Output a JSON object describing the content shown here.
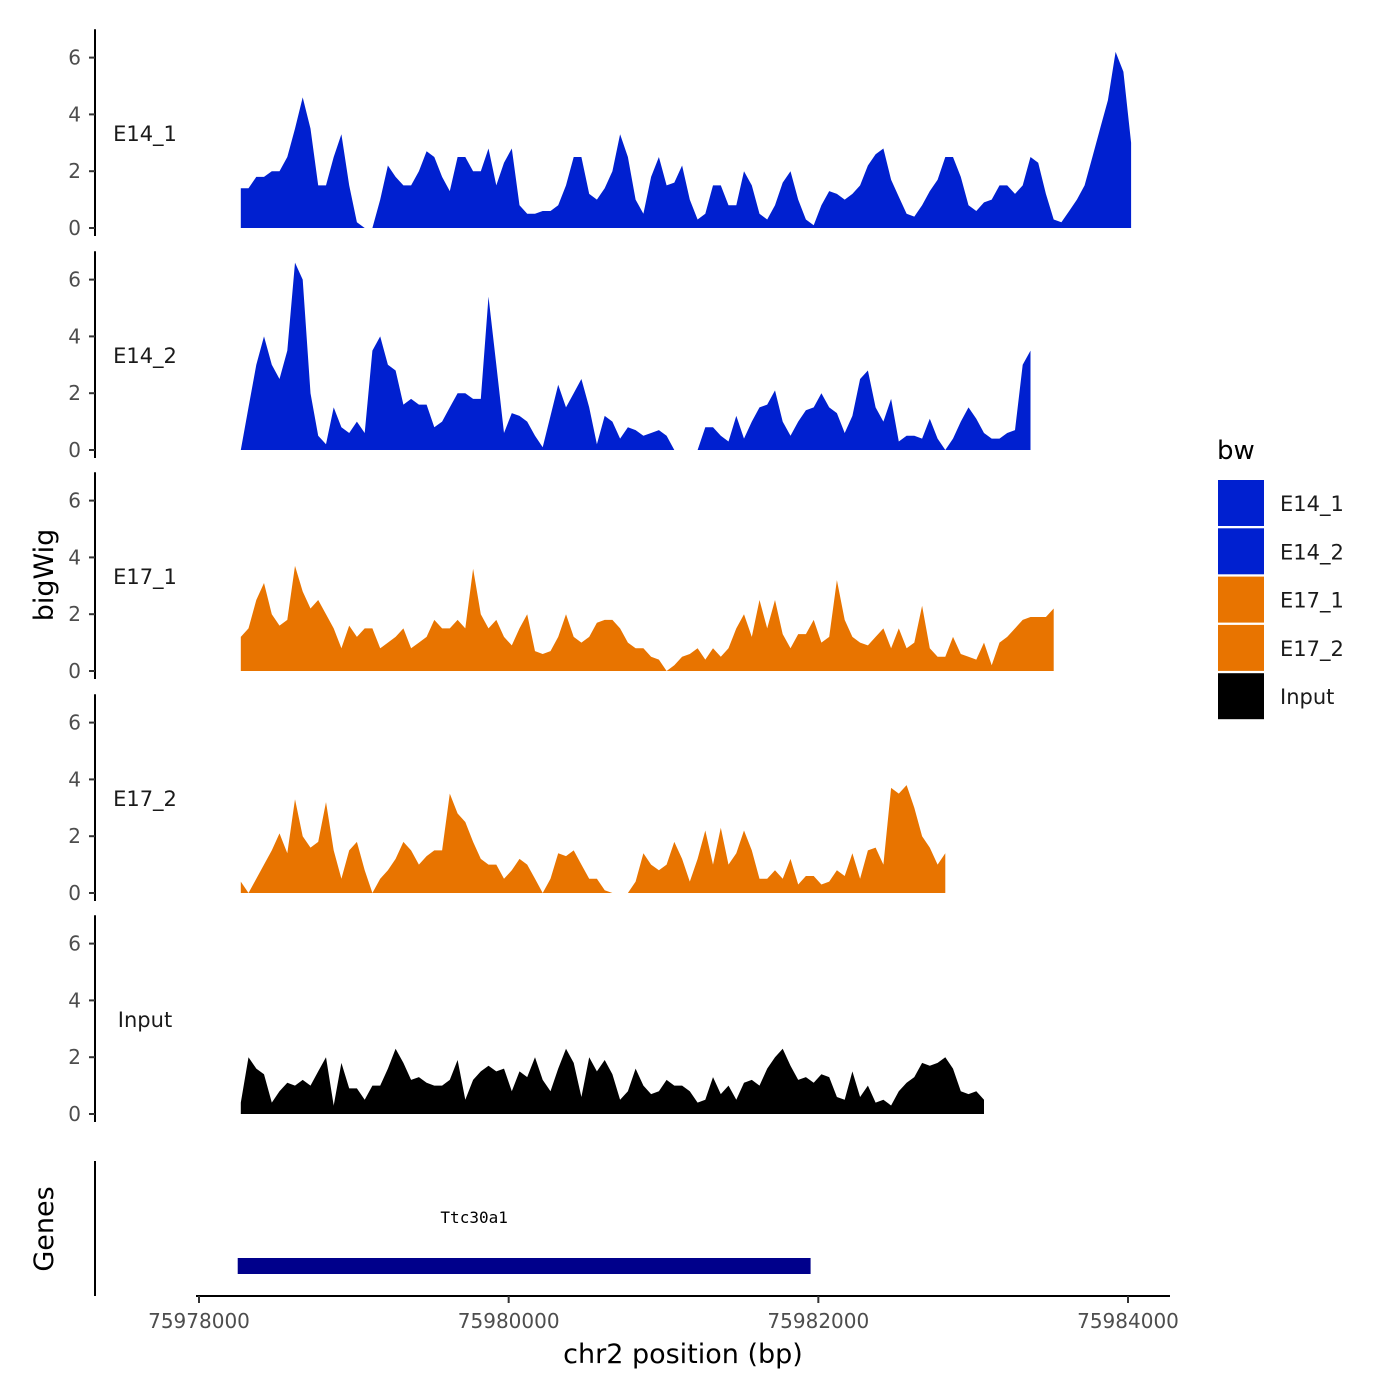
{
  "chart_data": {
    "type": "area",
    "title": "",
    "ylabel": "bigWig",
    "xlabel": "chr2 position (bp)",
    "xlim": [
      75977700,
      75984200
    ],
    "ylim": [
      0,
      7
    ],
    "y_ticks": [
      0,
      2,
      4,
      6
    ],
    "x_ticks": [
      75978000,
      75980000,
      75982000,
      75984000
    ],
    "x_tick_labels": [
      "75978000",
      "75980000",
      "75982000",
      "75984000"
    ],
    "legend": {
      "title": "bw",
      "placement": "right",
      "entries": [
        {
          "label": "E14_1",
          "color": "#0020d0"
        },
        {
          "label": "E14_2",
          "color": "#0020d0"
        },
        {
          "label": "E17_1",
          "color": "#e87400"
        },
        {
          "label": "E17_2",
          "color": "#e87400"
        },
        {
          "label": "Input",
          "color": "#000000"
        }
      ]
    },
    "x_start": 75978270,
    "x_step": 50,
    "series": [
      {
        "name": "E14_1",
        "color": "#0020d0",
        "values": [
          1.4,
          1.4,
          1.8,
          1.8,
          2.0,
          2.0,
          2.5,
          3.5,
          4.6,
          3.5,
          1.5,
          1.5,
          2.5,
          3.3,
          1.5,
          0.2,
          0,
          0,
          1.0,
          2.2,
          1.8,
          1.5,
          1.5,
          2.0,
          2.7,
          2.5,
          1.8,
          1.3,
          2.5,
          2.5,
          2.0,
          2.0,
          2.8,
          1.5,
          2.3,
          2.8,
          0.8,
          0.5,
          0.5,
          0.6,
          0.6,
          0.8,
          1.5,
          2.5,
          2.5,
          1.2,
          1.0,
          1.4,
          2.0,
          3.3,
          2.5,
          1.0,
          0.5,
          1.8,
          2.5,
          1.5,
          1.6,
          2.2,
          1.0,
          0.3,
          0.5,
          1.5,
          1.5,
          0.8,
          0.8,
          2.0,
          1.5,
          0.5,
          0.3,
          0.8,
          1.6,
          2.0,
          1.0,
          0.3,
          0.1,
          0.8,
          1.3,
          1.2,
          1.0,
          1.2,
          1.5,
          2.2,
          2.6,
          2.8,
          1.7,
          1.1,
          0.5,
          0.4,
          0.8,
          1.3,
          1.7,
          2.5,
          2.5,
          1.8,
          0.8,
          0.6,
          0.9,
          1.0,
          1.5,
          1.5,
          1.2,
          1.5,
          2.5,
          2.3,
          1.2,
          0.3,
          0.2,
          0.6,
          1.0,
          1.5,
          2.5,
          3.5,
          4.5,
          6.2,
          5.5,
          3.0
        ]
      },
      {
        "name": "E14_2",
        "color": "#0020d0",
        "values": [
          0,
          1.5,
          3.0,
          4.0,
          3.0,
          2.5,
          3.5,
          6.6,
          6.0,
          2.0,
          0.5,
          0.2,
          1.5,
          0.8,
          0.6,
          1.0,
          0.6,
          3.5,
          4.0,
          3.0,
          2.8,
          1.6,
          1.8,
          1.6,
          1.6,
          0.8,
          1.0,
          1.5,
          2.0,
          2.0,
          1.8,
          1.8,
          5.4,
          3.0,
          0.6,
          1.3,
          1.2,
          1.0,
          0.5,
          0.1,
          1.2,
          2.3,
          1.5,
          2.0,
          2.5,
          1.5,
          0.2,
          1.2,
          1.0,
          0.4,
          0.8,
          0.7,
          0.5,
          0.6,
          0.7,
          0.5,
          0,
          0,
          0,
          0,
          0.8,
          0.8,
          0.5,
          0.3,
          1.2,
          0.4,
          1.0,
          1.5,
          1.6,
          2.1,
          1.0,
          0.5,
          1.0,
          1.4,
          1.5,
          2.0,
          1.5,
          1.3,
          0.6,
          1.2,
          2.5,
          2.8,
          1.5,
          1.0,
          1.8,
          0.3,
          0.5,
          0.5,
          0.4,
          1.1,
          0.4,
          0,
          0.4,
          1.0,
          1.5,
          1.1,
          0.6,
          0.4,
          0.4,
          0.6,
          0.7,
          3.0,
          3.5
        ]
      },
      {
        "name": "E17_1",
        "color": "#e87400",
        "values": [
          1.2,
          1.5,
          2.5,
          3.1,
          2.0,
          1.6,
          1.8,
          3.7,
          2.8,
          2.2,
          2.5,
          2.0,
          1.5,
          0.8,
          1.6,
          1.2,
          1.5,
          1.5,
          0.8,
          1.0,
          1.2,
          1.5,
          0.8,
          1.0,
          1.2,
          1.8,
          1.5,
          1.5,
          1.8,
          1.5,
          3.6,
          2.0,
          1.5,
          1.8,
          1.2,
          0.9,
          1.5,
          2.0,
          0.7,
          0.6,
          0.7,
          1.2,
          2.0,
          1.2,
          1.0,
          1.2,
          1.7,
          1.8,
          1.8,
          1.5,
          1.0,
          0.8,
          0.8,
          0.5,
          0.4,
          0,
          0.2,
          0.5,
          0.6,
          0.8,
          0.4,
          0.8,
          0.5,
          0.8,
          1.5,
          2.0,
          1.2,
          2.5,
          1.5,
          2.5,
          1.3,
          0.8,
          1.3,
          1.3,
          1.8,
          1.0,
          1.2,
          3.2,
          1.8,
          1.2,
          1.0,
          0.9,
          1.2,
          1.5,
          0.8,
          1.5,
          0.8,
          1.0,
          2.3,
          0.8,
          0.5,
          0.5,
          1.2,
          0.6,
          0.5,
          0.4,
          1.0,
          0.2,
          1.0,
          1.2,
          1.5,
          1.8,
          1.9,
          1.9,
          1.9,
          2.2
        ]
      },
      {
        "name": "E17_2",
        "color": "#e87400",
        "values": [
          0.4,
          0,
          0.5,
          1.0,
          1.5,
          2.1,
          1.4,
          3.3,
          2.0,
          1.6,
          1.8,
          3.2,
          1.5,
          0.5,
          1.5,
          1.8,
          0.8,
          0,
          0.5,
          0.8,
          1.2,
          1.8,
          1.5,
          1.0,
          1.3,
          1.5,
          1.5,
          3.5,
          2.8,
          2.5,
          1.8,
          1.2,
          1.0,
          1.0,
          0.5,
          0.8,
          1.2,
          1.0,
          0.5,
          0,
          0.5,
          1.4,
          1.3,
          1.5,
          1.0,
          0.5,
          0.5,
          0.1,
          0,
          0,
          0,
          0.4,
          1.4,
          1.0,
          0.8,
          1.0,
          1.8,
          1.2,
          0.4,
          1.2,
          2.2,
          1.0,
          2.3,
          1.0,
          1.4,
          2.2,
          1.5,
          0.5,
          0.5,
          0.8,
          0.5,
          1.2,
          0.3,
          0.6,
          0.6,
          0.3,
          0.4,
          0.8,
          0.6,
          1.4,
          0.5,
          1.5,
          1.6,
          1.0,
          3.7,
          3.5,
          3.8,
          3.0,
          2.0,
          1.6,
          1.0,
          1.4
        ]
      },
      {
        "name": "Input",
        "color": "#000000",
        "values": [
          0.4,
          2.0,
          1.6,
          1.4,
          0.4,
          0.8,
          1.1,
          1.0,
          1.2,
          1.0,
          1.5,
          2.0,
          0.3,
          1.8,
          0.9,
          0.9,
          0.5,
          1.0,
          1.0,
          1.6,
          2.3,
          1.8,
          1.2,
          1.3,
          1.1,
          1.0,
          1.0,
          1.2,
          1.9,
          0.5,
          1.2,
          1.5,
          1.7,
          1.5,
          1.6,
          0.8,
          1.5,
          1.3,
          2.0,
          1.2,
          0.8,
          1.6,
          2.3,
          1.8,
          0.6,
          2.0,
          1.5,
          1.9,
          1.4,
          0.5,
          0.8,
          1.6,
          1.0,
          0.7,
          0.8,
          1.2,
          1.0,
          1.0,
          0.8,
          0.4,
          0.5,
          1.3,
          0.7,
          1.0,
          0.5,
          1.1,
          1.2,
          1.0,
          1.6,
          2.0,
          2.3,
          1.7,
          1.2,
          1.3,
          1.1,
          1.4,
          1.3,
          0.6,
          0.5,
          1.5,
          0.6,
          1.0,
          0.4,
          0.5,
          0.3,
          0.8,
          1.1,
          1.3,
          1.8,
          1.7,
          1.8,
          2.0,
          1.6,
          0.8,
          0.7,
          0.8,
          0.5
        ]
      }
    ],
    "genes_track": {
      "label": "Genes",
      "genes": [
        {
          "name": "Ttc30a1",
          "start": 75978250,
          "end": 75981950,
          "color": "#00008b"
        }
      ]
    }
  }
}
